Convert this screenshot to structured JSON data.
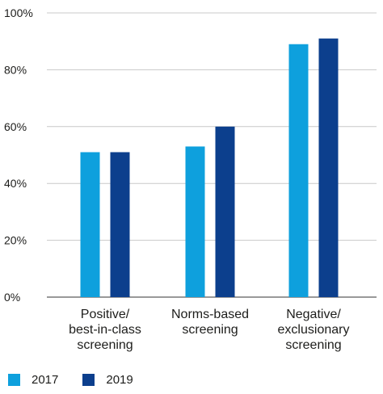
{
  "chart_data": {
    "type": "bar",
    "categories": [
      [
        "Positive/",
        "best-in-class",
        "screening"
      ],
      [
        "Norms-based",
        "screening"
      ],
      [
        "Negative/",
        "exclusionary",
        "screening"
      ]
    ],
    "series": [
      {
        "name": "2017",
        "color": "#0ea0dd",
        "values": [
          51,
          53,
          89
        ]
      },
      {
        "name": "2019",
        "color": "#0c3f8d",
        "values": [
          51,
          60,
          91
        ]
      }
    ],
    "y_ticks": [
      0,
      20,
      40,
      60,
      80,
      100
    ],
    "y_tick_labels": [
      "0%",
      "20%",
      "40%",
      "60%",
      "80%",
      "100%"
    ],
    "ylim": [
      0,
      100
    ],
    "grid": true,
    "legend_position": "bottom-left"
  }
}
